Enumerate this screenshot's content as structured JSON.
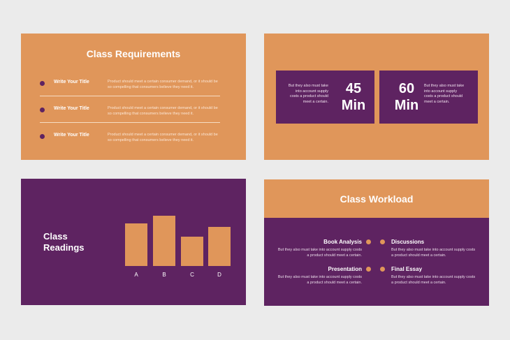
{
  "colors": {
    "orange": "#e0965a",
    "purple": "#5e2361",
    "background": "#ebebeb"
  },
  "requirements": {
    "title": "Class Requirements",
    "items": [
      {
        "title": "Write Your Title",
        "desc": "Product should meet a certain consumer demand, or it should be so compelling that consumers believe they need it."
      },
      {
        "title": "Write Your Title",
        "desc": "Product should meet a certain consumer demand, or it should be so compelling that consumers believe they need it."
      },
      {
        "title": "Write Your Title",
        "desc": "Product should meet a certain consumer demand, or it should be so compelling that consumers believe they need it."
      }
    ]
  },
  "durations": [
    {
      "value": "45",
      "unit": "Min",
      "desc": "But they also must take into account supply costs a product should meet a certain."
    },
    {
      "value": "60",
      "unit": "Min",
      "desc": "But they also must take into account supply costs a product should meet a certain."
    }
  ],
  "readings": {
    "title_line1": "Class",
    "title_line2": "Readings"
  },
  "chart_data": {
    "type": "bar",
    "categories": [
      "A",
      "B",
      "C",
      "D"
    ],
    "values": [
      61,
      72,
      42,
      56
    ]
  },
  "workload": {
    "title": "Class Workload",
    "items": [
      {
        "title": "Book Analysis",
        "desc": "But they also must take into account supply costs a product should meet a certain."
      },
      {
        "title": "Discussions",
        "desc": "But they also must take into account supply costs a product should meet a certain."
      },
      {
        "title": "Presentation",
        "desc": "But they also must take into account supply costs a product should meet a certain."
      },
      {
        "title": "Final Essay",
        "desc": "But they also must take into account supply costs a product should meet a certain."
      }
    ]
  }
}
